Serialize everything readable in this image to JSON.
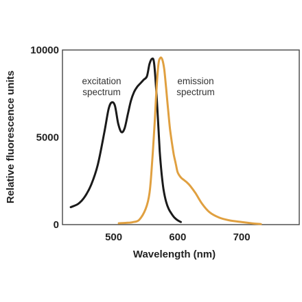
{
  "chart_data": {
    "type": "line",
    "xlabel": "Wavelength (nm)",
    "ylabel": "Relative fluorescence units",
    "xlim": [
      420,
      790
    ],
    "ylim": [
      0,
      10000
    ],
    "x_ticks": [
      500,
      600,
      700
    ],
    "y_ticks": [
      0,
      5000,
      10000
    ],
    "grid": false,
    "series": [
      {
        "name": "excitation spectrum",
        "annotation_lines": [
          "excitation",
          "spectrum"
        ],
        "color": "#1a1a1a",
        "x": [
          433,
          445,
          455,
          465,
          475,
          485,
          492,
          497,
          502,
          507,
          512,
          517,
          522,
          527,
          532,
          537,
          542,
          547,
          552,
          556,
          560,
          563,
          566,
          569,
          572,
          575,
          578,
          582,
          586,
          590,
          595,
          600,
          605
        ],
        "y": [
          1000,
          1200,
          1600,
          2300,
          3400,
          5200,
          6600,
          7000,
          6800,
          5800,
          5300,
          5500,
          6300,
          7100,
          7600,
          7900,
          8100,
          8300,
          8500,
          9200,
          9500,
          9300,
          8000,
          6200,
          4200,
          2900,
          2000,
          1300,
          900,
          650,
          400,
          250,
          150
        ]
      },
      {
        "name": "emission spectrum",
        "annotation_lines": [
          "emission",
          "spectrum"
        ],
        "color": "#e0a040",
        "x": [
          508,
          520,
          530,
          540,
          550,
          556,
          560,
          564,
          567,
          570,
          573,
          576,
          579,
          582,
          585,
          588,
          591,
          594,
          597,
          600,
          605,
          610,
          615,
          620,
          628,
          638,
          650,
          665,
          680,
          700,
          715,
          730
        ],
        "y": [
          80,
          100,
          140,
          280,
          900,
          1800,
          3500,
          5800,
          7800,
          9200,
          9550,
          9450,
          8900,
          7800,
          6600,
          5500,
          4700,
          4000,
          3500,
          3000,
          2700,
          2550,
          2400,
          2200,
          1800,
          1200,
          700,
          400,
          250,
          150,
          80,
          30
        ]
      }
    ]
  }
}
